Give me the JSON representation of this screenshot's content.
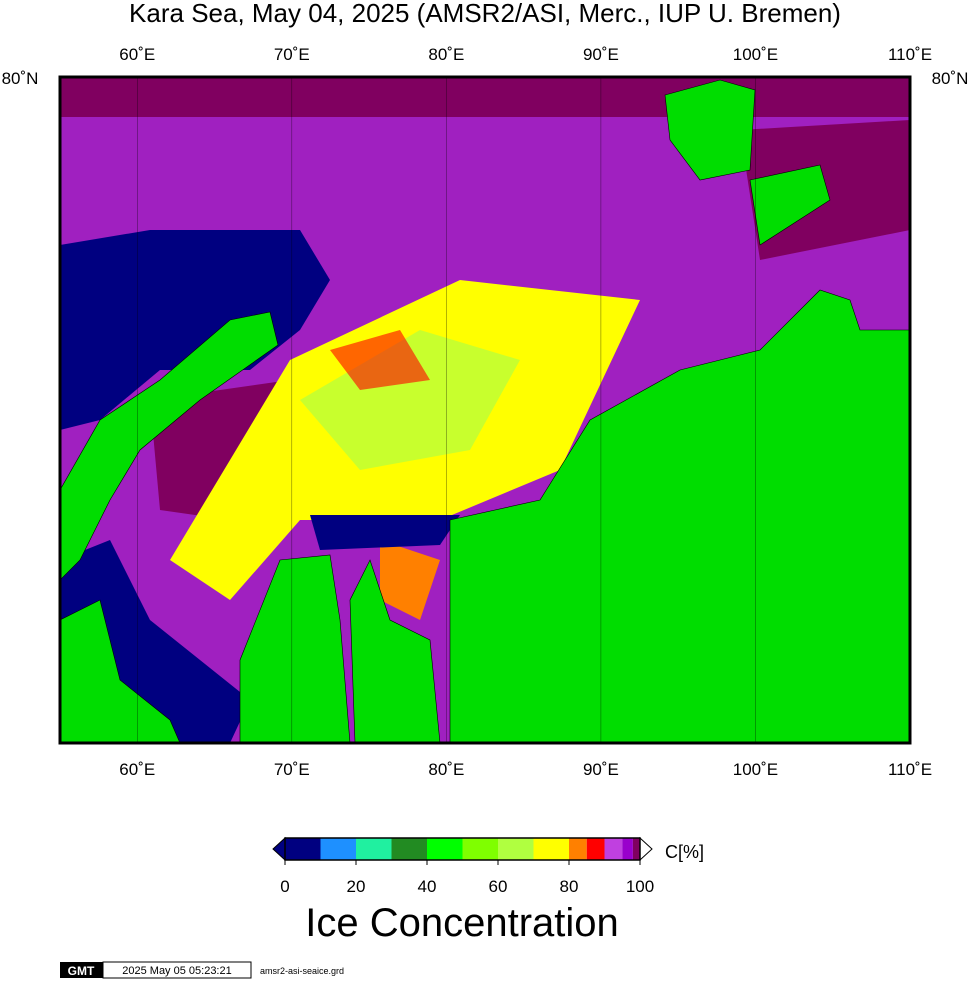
{
  "map": {
    "title": "Kara Sea, May 04, 2025 (AMSR2/ASI, Merc., IUP U. Bremen)",
    "lon_range": [
      55,
      110
    ],
    "lon_ticks": [
      {
        "value": 60,
        "label": "60˚E"
      },
      {
        "value": 70,
        "label": "70˚E"
      },
      {
        "value": 80,
        "label": "80˚E"
      },
      {
        "value": 90,
        "label": "90˚E"
      },
      {
        "value": 100,
        "label": "100˚E"
      },
      {
        "value": 110,
        "label": "110˚E"
      }
    ],
    "lat_tick": {
      "value": 80,
      "label": "80˚N"
    }
  },
  "colorbar": {
    "title": "Ice Concentration",
    "unit": "C[%]",
    "range": [
      0,
      100
    ],
    "bounds": [
      0,
      10,
      20,
      30,
      40,
      50,
      60,
      70,
      80,
      85,
      90,
      95,
      98,
      100
    ],
    "colors": [
      "#000080",
      "#1e90ff",
      "#20f0a0",
      "#228b22",
      "#00ff00",
      "#7fff00",
      "#b0ff40",
      "#ffff00",
      "#ff8000",
      "#ff0000",
      "#c040e0",
      "#9900cc",
      "#800060"
    ],
    "ticks": [
      0,
      20,
      40,
      60,
      80,
      100
    ]
  },
  "footer": {
    "logo": "GMT",
    "timestamp": "2025 May 05 05:23:21",
    "file": "amsr2-asi-seaice.grd"
  }
}
